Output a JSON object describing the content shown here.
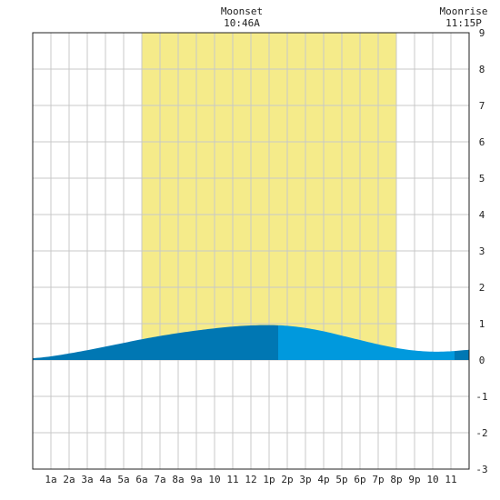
{
  "chart_data": {
    "type": "area",
    "title": "",
    "xlabel": "",
    "ylabel": "",
    "x_range_hours": [
      0,
      24
    ],
    "ylim": [
      -3,
      9
    ],
    "y_ticks": [
      "-3",
      "-2",
      "-1",
      "0",
      "1",
      "2",
      "3",
      "4",
      "5",
      "6",
      "7",
      "8",
      "9"
    ],
    "x_tick_labels": [
      "1a",
      "2a",
      "3a",
      "4a",
      "5a",
      "6a",
      "7a",
      "8a",
      "9a",
      "10",
      "11",
      "12",
      "1p",
      "2p",
      "3p",
      "4p",
      "5p",
      "6p",
      "7p",
      "8p",
      "9p",
      "10",
      "11"
    ],
    "grid": true,
    "daylight_hours": [
      6.0,
      20.0
    ],
    "tide_curve": {
      "hours": [
        0,
        1,
        2,
        3,
        4,
        5,
        6,
        7,
        8,
        9,
        10,
        11,
        12,
        13,
        14,
        15,
        16,
        17,
        18,
        19,
        20,
        21,
        22,
        23,
        24
      ],
      "heights": [
        0.05,
        0.1,
        0.18,
        0.27,
        0.37,
        0.47,
        0.57,
        0.66,
        0.74,
        0.81,
        0.87,
        0.92,
        0.95,
        0.96,
        0.94,
        0.88,
        0.79,
        0.67,
        0.55,
        0.43,
        0.33,
        0.26,
        0.23,
        0.24,
        0.28
      ],
      "color_segments": [
        {
          "start": 0,
          "end": 13.5,
          "color": "#0077b3"
        },
        {
          "start": 13.5,
          "end": 23.2,
          "color": "#0099dd"
        },
        {
          "start": 23.2,
          "end": 24,
          "color": "#0077b3"
        }
      ]
    },
    "moon_events": [
      {
        "label": "Moonset",
        "time": "10:46A",
        "hour": 11.5
      },
      {
        "label": "Moonrise",
        "time": "11:15P",
        "hour": 24.0
      }
    ]
  },
  "colors": {
    "daylight": "#f5eb8a",
    "grid": "#c8c8c8",
    "axis": "#222222"
  }
}
